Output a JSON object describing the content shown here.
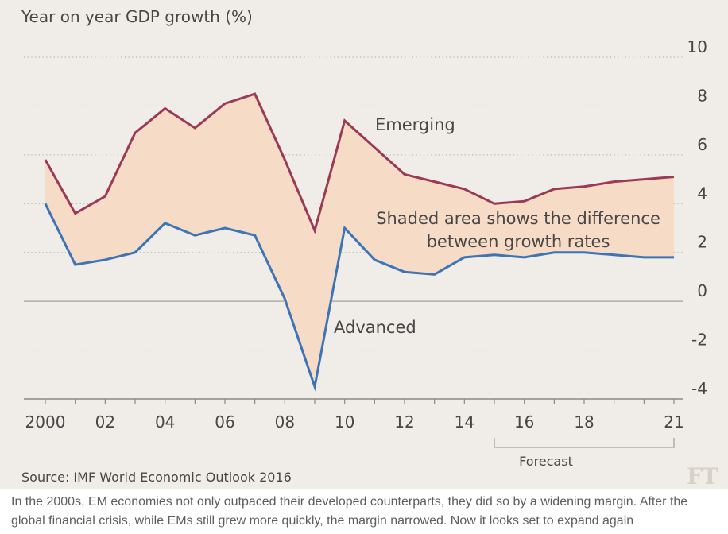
{
  "chart_data": {
    "type": "line",
    "title": "Year on year GDP growth (%)",
    "source": "Source: IMF World Economic Outlook 2016",
    "x": [
      2000,
      2001,
      2002,
      2003,
      2004,
      2005,
      2006,
      2007,
      2008,
      2009,
      2010,
      2011,
      2012,
      2013,
      2014,
      2015,
      2016,
      2017,
      2018,
      2019,
      2020,
      2021
    ],
    "series": [
      {
        "name": "Emerging",
        "color": "#9b3a55",
        "values": [
          5.8,
          3.6,
          4.3,
          6.9,
          7.9,
          7.1,
          8.1,
          8.5,
          5.8,
          2.9,
          7.4,
          6.3,
          5.2,
          4.9,
          4.6,
          4.0,
          4.1,
          4.6,
          4.7,
          4.9,
          5.0,
          5.1
        ]
      },
      {
        "name": "Advanced",
        "color": "#3d74b5",
        "values": [
          4.0,
          1.5,
          1.7,
          2.0,
          3.2,
          2.7,
          3.0,
          2.7,
          0.1,
          -3.5,
          3.0,
          1.7,
          1.2,
          1.1,
          1.8,
          1.9,
          1.8,
          2.0,
          2.0,
          1.9,
          1.8,
          1.8
        ]
      }
    ],
    "xticks": [
      {
        "value": 2000,
        "label": "2000"
      },
      {
        "value": 2002,
        "label": "02"
      },
      {
        "value": 2004,
        "label": "04"
      },
      {
        "value": 2006,
        "label": "06"
      },
      {
        "value": 2008,
        "label": "08"
      },
      {
        "value": 2010,
        "label": "10"
      },
      {
        "value": 2012,
        "label": "12"
      },
      {
        "value": 2014,
        "label": "14"
      },
      {
        "value": 2016,
        "label": "16"
      },
      {
        "value": 2018,
        "label": "18"
      },
      {
        "value": 2021,
        "label": "21"
      }
    ],
    "yticks": [
      10,
      8,
      6,
      4,
      2,
      0,
      -2,
      -4
    ],
    "ylim": [
      -4,
      10
    ],
    "xlim": [
      2000,
      2021
    ],
    "grid": "dotted horizontal",
    "fill_color": "#f6dcc7",
    "annotations": {
      "emerging": "Emerging",
      "advanced": "Advanced",
      "shaded_line1": "Shaded area shows the difference",
      "shaded_line2": "between growth rates",
      "forecast": "Forecast"
    },
    "forecast_range": [
      2015,
      2021
    ]
  },
  "logo": "FT",
  "caption": "In the 2000s, EM economies not only outpaced their developed counterparts, they did so by a widening margin. After the global financial crisis, while EMs still grew more quickly, the margin narrowed. Now it looks set to expand again"
}
